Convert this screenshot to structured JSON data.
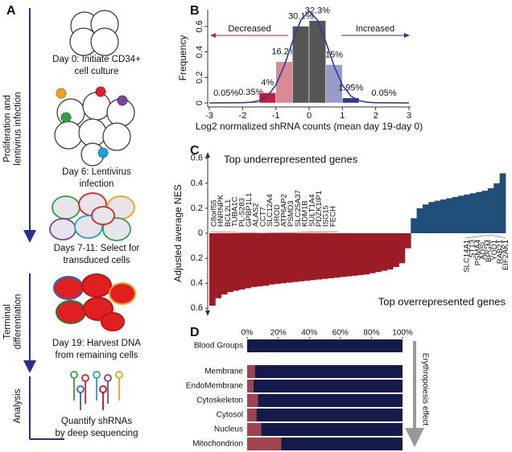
{
  "panel_a": {
    "label": "A",
    "phases": [
      [
        "Proliferation and",
        "lentivirus infection"
      ],
      [
        "Terminal",
        "differentiation"
      ],
      [
        "Analysis"
      ]
    ],
    "steps": [
      [
        "Day 0: Initiate CD34+",
        "cell culture"
      ],
      [
        "Day 6: Lentivirus",
        "infection"
      ],
      [
        "Days 7-11: Select for",
        "transduced cells"
      ],
      [
        "Day 19: Harvest DNA",
        "from remaining cells"
      ],
      [
        "Quantify shRNAs",
        "by deep sequencing"
      ]
    ]
  },
  "chart_data": [
    {
      "type": "histogram",
      "panel": "B",
      "xlabel": "Log2 normalized shRNA counts (mean day 19-day 0)",
      "ylabel": "Frequency",
      "bins": [
        -3,
        -2,
        -1.5,
        -1,
        -0.5,
        0,
        0.5,
        1,
        1.5,
        3
      ],
      "values": [
        0.0005,
        0.007,
        0.08,
        0.324,
        0.602,
        0.646,
        0.3,
        0.039,
        0.0003
      ],
      "colors": [
        "#c41e3a",
        "#c41e3a",
        "#c41e3a",
        "#d98a96",
        "#555555",
        "#555555",
        "#9a9ac8",
        "#2a3a8c",
        "#2a3a8c"
      ],
      "annotations": [
        "0.05%",
        "0.35%",
        "4%",
        "16.2%",
        "30.1%",
        "32.3%",
        "15%",
        "1.95%",
        "0.05%"
      ],
      "directions": [
        {
          "text": "Decreased",
          "color": "#c41e3a"
        },
        {
          "text": "Increased",
          "color": "#2a3a8c"
        }
      ],
      "curve": {
        "color": "#2a3aa0",
        "x": [
          -3,
          -2.5,
          -2,
          -1.75,
          -1.5,
          -1.25,
          -1,
          -0.75,
          -0.5,
          -0.25,
          0,
          0.25,
          0.5,
          0.75,
          1,
          1.25,
          1.5,
          1.75,
          2,
          2.5,
          3
        ],
        "y": [
          0,
          0.001,
          0.002,
          0.005,
          0.018,
          0.055,
          0.14,
          0.29,
          0.48,
          0.65,
          0.72,
          0.65,
          0.48,
          0.29,
          0.14,
          0.055,
          0.018,
          0.005,
          0.002,
          0.001,
          0
        ]
      },
      "xlim": [
        -3,
        3
      ],
      "xticks": [
        -3,
        -2,
        -1,
        0,
        1,
        2,
        3
      ],
      "ylim": [
        0,
        0.7
      ],
      "yticks": [
        0,
        0.2,
        0.4,
        0.6
      ]
    },
    {
      "type": "waterfall",
      "panel": "C",
      "ylabel": "Adjusted average NES",
      "negative_color": "#9b1c24",
      "positive_color": "#1f4e79",
      "values": [
        -0.58,
        -0.52,
        -0.49,
        -0.47,
        -0.46,
        -0.45,
        -0.44,
        -0.43,
        -0.425,
        -0.42,
        -0.41,
        -0.405,
        -0.4,
        -0.395,
        -0.39,
        -0.385,
        -0.38,
        -0.375,
        -0.37,
        -0.365,
        -0.36,
        -0.355,
        -0.35,
        -0.345,
        -0.34,
        -0.335,
        -0.33,
        -0.32,
        -0.31,
        -0.3,
        -0.29,
        -0.27,
        -0.24,
        -0.12,
        0.12,
        0.2,
        0.23,
        0.25,
        0.26,
        0.27,
        0.28,
        0.29,
        0.3,
        0.31,
        0.32,
        0.33,
        0.34,
        0.36,
        0.4,
        0.48
      ],
      "ylim": [
        -0.65,
        0.65
      ],
      "yticks": [
        0.6,
        0.4,
        0.2,
        0,
        {
          "value": -0.2,
          "label": "0.2"
        },
        {
          "value": -0.4,
          "label": "0.4"
        },
        {
          "value": -0.6,
          "label": "0.6"
        }
      ],
      "under_title": "Top underrepresented genes",
      "under_genes": [
        "C8orf55",
        "HNRNPK",
        "BCL2L1",
        "TUBA1C",
        "PL-5283",
        "GPBP1L1",
        "ALAS2",
        "CCT7",
        "SLC12A4",
        "UROD",
        "ATP6AP2",
        "PSMD3",
        "SLC25A37",
        "KDM1B",
        "SULT1A4",
        "PDZK1IP1",
        "ISG15",
        "FECH"
      ],
      "over_title": "Top overrepresented genes",
      "over_genes": [
        "SLC14A1",
        "ST13",
        "PSMA4",
        "ADSL",
        "BPGM",
        "YOD1",
        "RAB21",
        "EIF2AK1"
      ]
    },
    {
      "type": "stacked_barh",
      "panel": "D",
      "annotation": "Erythropoiesis effect",
      "categories": [
        "Blood Groups",
        "Membrane",
        "EndoMembrane",
        "Cytoskeleton",
        "Cytosol",
        "Nucleus",
        "Mitochondrion"
      ],
      "series": [
        {
          "color": "#a0434c",
          "values": [
            0,
            5,
            4,
            7,
            6,
            9,
            22
          ]
        },
        {
          "color": "#141a4a",
          "values": [
            100,
            95,
            96,
            93,
            94,
            91,
            78
          ]
        }
      ],
      "xlim": [
        0,
        100
      ],
      "xticks": [
        {
          "value": 0,
          "label": "0%"
        },
        {
          "value": 20,
          "label": "20%"
        },
        {
          "value": 40,
          "label": "40%"
        },
        {
          "value": 60,
          "label": "60%"
        },
        {
          "value": 80,
          "label": "80%"
        },
        {
          "value": 100,
          "label": "100%"
        }
      ]
    }
  ]
}
